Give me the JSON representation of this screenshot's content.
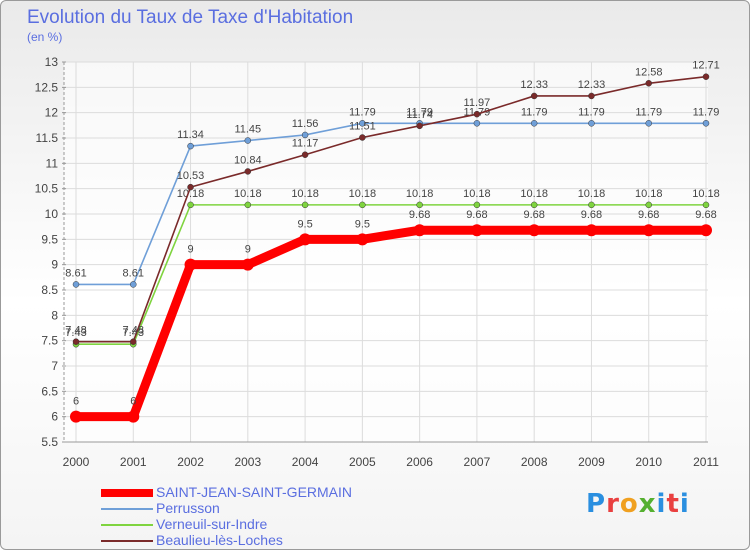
{
  "header": {
    "title": "Evolution du Taux de Taxe d'Habitation",
    "subtitle": "(en %)"
  },
  "logo": {
    "text": "Proxiti"
  },
  "chart_data": {
    "type": "line",
    "x": [
      "2000",
      "2001",
      "2002",
      "2003",
      "2004",
      "2005",
      "2006",
      "2007",
      "2008",
      "2009",
      "2010",
      "2011"
    ],
    "ylim": [
      5.5,
      13
    ],
    "yticks": [
      5.5,
      6,
      6.5,
      7,
      7.5,
      8,
      8.5,
      9,
      9.5,
      10,
      10.5,
      11,
      11.5,
      12,
      12.5,
      13
    ],
    "grid": true,
    "legend_position": "bottom-left",
    "series": [
      {
        "name": "SAINT-JEAN-SAINT-GERMAIN",
        "color": "#ff0000",
        "values": [
          6,
          6,
          9,
          9,
          9.5,
          9.5,
          9.68,
          9.68,
          9.68,
          9.68,
          9.68,
          9.68
        ]
      },
      {
        "name": "Perrusson",
        "color": "#6f9fd8",
        "values": [
          8.61,
          8.61,
          11.34,
          11.45,
          11.56,
          11.79,
          11.79,
          11.79,
          11.79,
          11.79,
          11.79,
          11.79
        ]
      },
      {
        "name": "Verneuil-sur-Indre",
        "color": "#7fd43f",
        "values": [
          7.43,
          7.43,
          10.18,
          10.18,
          10.18,
          10.18,
          10.18,
          10.18,
          10.18,
          10.18,
          10.18,
          10.18
        ]
      },
      {
        "name": "Beaulieu-lès-Loches",
        "color": "#7a2a2a",
        "values": [
          7.48,
          7.48,
          10.53,
          10.84,
          11.17,
          11.51,
          11.74,
          11.97,
          12.33,
          12.33,
          12.58,
          12.71
        ]
      }
    ]
  }
}
